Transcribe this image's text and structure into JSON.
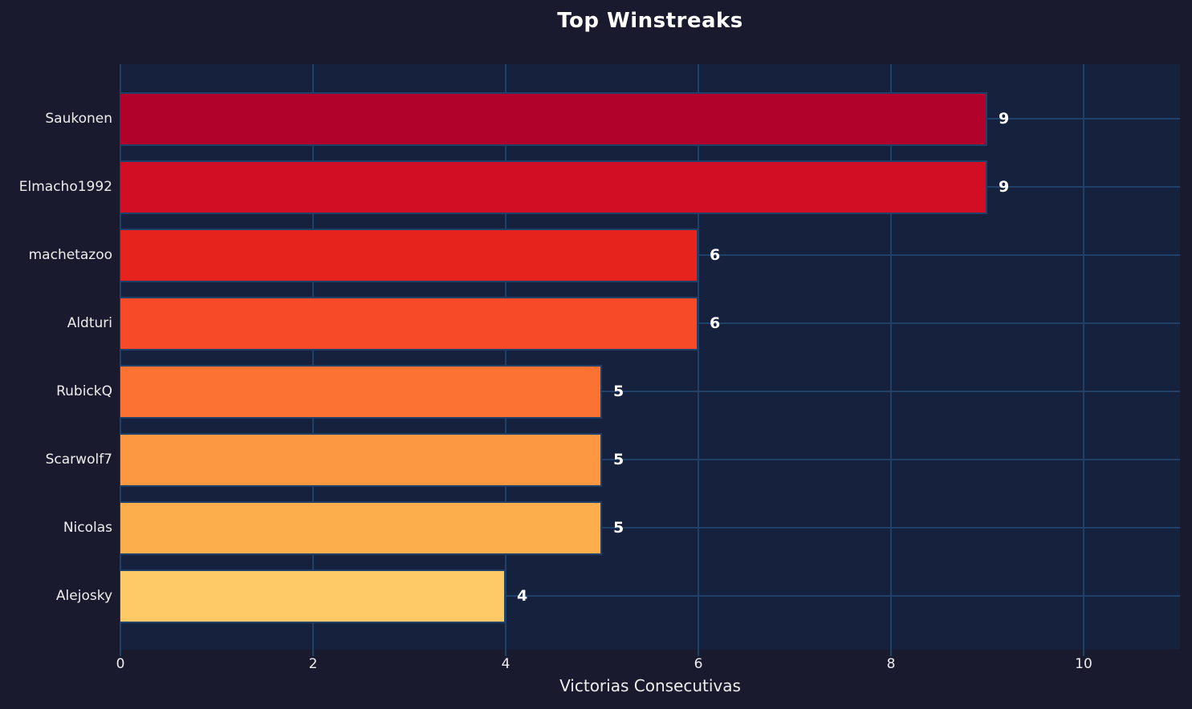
{
  "title": "Top Winstreaks",
  "colors": {
    "figure_bg": "#1a1a2e",
    "plot_bg": "#16213e",
    "grid": "#1f4068",
    "bar_edge": "#1f4068",
    "title_text": "#ffffff",
    "tick_text": "#ededed",
    "value_text": "#ffffff"
  },
  "chart_data": {
    "type": "bar",
    "orientation": "horizontal",
    "title": "Top Winstreaks",
    "xlabel": "Victorias Consecutivas",
    "ylabel": "",
    "categories": [
      "Saukonen",
      "Elmacho1992",
      "machetazoo",
      "Aldturi",
      "RubickQ",
      "Scarwolf7",
      "Nicolas",
      "Alejosky"
    ],
    "values": [
      9,
      9,
      6,
      6,
      5,
      5,
      5,
      4
    ],
    "value_labels": [
      "9",
      "9",
      "6",
      "6",
      "5",
      "5",
      "5",
      "4"
    ],
    "bar_colors": [
      "#b1022c",
      "#d20e24",
      "#e6231d",
      "#f74a28",
      "#fb7232",
      "#fc9742",
      "#fcae4c",
      "#fdca67"
    ],
    "xlim": [
      0,
      11
    ],
    "xticks": [
      0,
      2,
      4,
      6,
      8,
      10
    ],
    "grid": true,
    "grid_axes": "both",
    "legend": false
  }
}
